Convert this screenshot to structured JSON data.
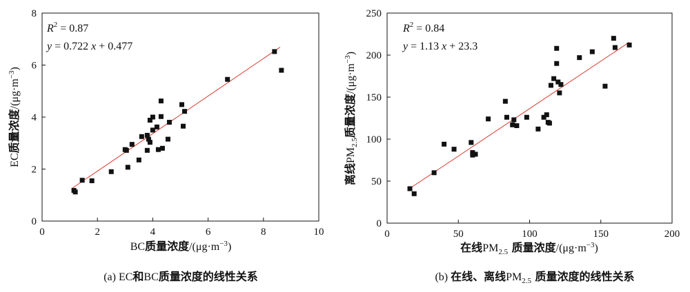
{
  "chart_data": [
    {
      "type": "scatter",
      "panel": "a",
      "caption": "(a) EC和BC质量浓度的线性关系",
      "xlabel": "BC质量浓度/(μg·m⁻³)",
      "ylabel": "EC质量浓度/(μg·m⁻³)",
      "xlim": [
        0,
        10
      ],
      "ylim": [
        0,
        8
      ],
      "xticks": [
        0,
        2,
        4,
        6,
        8,
        10
      ],
      "yticks": [
        0,
        2,
        4,
        6,
        8
      ],
      "annotation": {
        "r2": "R² = 0.87",
        "equation": "y = 0.722 x + 0.477"
      },
      "fit": {
        "slope": 0.722,
        "intercept": 0.477,
        "x_range": [
          1.1,
          8.6
        ],
        "color": "#d9352b"
      },
      "grid": false,
      "x": [
        1.15,
        1.2,
        1.45,
        1.8,
        2.5,
        3.0,
        3.05,
        3.1,
        3.25,
        3.5,
        3.6,
        3.8,
        3.8,
        3.85,
        3.9,
        3.9,
        4.0,
        4.0,
        4.15,
        4.2,
        4.3,
        4.3,
        4.35,
        4.55,
        4.6,
        5.05,
        5.1,
        5.15,
        6.7,
        8.4,
        8.65
      ],
      "y": [
        1.18,
        1.12,
        1.57,
        1.55,
        1.9,
        2.75,
        2.72,
        2.07,
        2.95,
        2.35,
        3.25,
        3.3,
        2.72,
        3.15,
        3.03,
        3.88,
        3.5,
        4.0,
        3.62,
        2.75,
        4.62,
        4.02,
        2.8,
        3.15,
        3.8,
        4.48,
        3.65,
        4.22,
        5.45,
        6.52,
        5.8
      ]
    },
    {
      "type": "scatter",
      "panel": "b",
      "caption": "(b) 在线、离线PM2.5质量浓度的线性关系",
      "xlabel": "在线PM2.5质量浓度/(μg·m⁻³)",
      "ylabel": "离线PM2.5质量浓度/(μg·m⁻³)",
      "xlim": [
        0,
        200
      ],
      "ylim": [
        0,
        250
      ],
      "xticks": [
        0,
        50,
        100,
        150,
        200
      ],
      "yticks": [
        0,
        50,
        100,
        150,
        200,
        250
      ],
      "annotation": {
        "r2": "R² = 0.84",
        "equation": "y = 1.13 x + 23.3"
      },
      "fit": {
        "slope": 1.13,
        "intercept": 23.3,
        "x_range": [
          15,
          170
        ],
        "color": "#d9352b"
      },
      "grid": false,
      "x": [
        16,
        19,
        33,
        40,
        47,
        59,
        60,
        60,
        62,
        71,
        83,
        84,
        88,
        89,
        91,
        98,
        106,
        110,
        112,
        113,
        114,
        115,
        117,
        119,
        119,
        120,
        121,
        122,
        135,
        144,
        153,
        159,
        160,
        170
      ],
      "y": [
        41,
        35,
        60,
        94,
        88,
        96,
        84,
        81,
        82,
        124,
        145,
        126,
        117,
        123,
        116,
        126,
        112,
        126,
        129,
        120,
        119,
        164,
        172,
        190,
        208,
        168,
        155,
        165,
        197,
        204,
        163,
        220,
        209,
        212
      ]
    }
  ],
  "style": {
    "marker_color": "#111111",
    "axis_color": "#111111",
    "line_color": "#d9352b"
  }
}
